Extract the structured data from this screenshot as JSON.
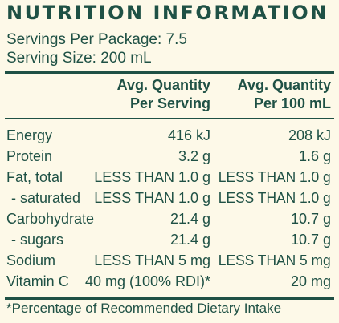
{
  "title": "NUTRITION INFORMATION",
  "servings_per_package": "Servings Per Package: 7.5",
  "serving_size": "Serving Size: 200 mL",
  "columns": {
    "per_serving_line1": "Avg. Quantity",
    "per_serving_line2": "Per Serving",
    "per_100_line1": "Avg. Quantity",
    "per_100_line2": "Per 100 mL"
  },
  "rows": [
    {
      "name": "Energy",
      "per_serving": "416 kJ",
      "per_100": "208 kJ"
    },
    {
      "name": "Protein",
      "per_serving": "3.2 g",
      "per_100": "1.6 g"
    },
    {
      "name": "Fat, total",
      "per_serving": "LESS THAN 1.0 g",
      "per_100": "LESS THAN 1.0 g"
    },
    {
      "name": "- saturated",
      "per_serving": "LESS THAN 1.0 g",
      "per_100": "LESS THAN 1.0 g"
    },
    {
      "name": "Carbohydrate",
      "per_serving": "21.4 g",
      "per_100": "10.7 g"
    },
    {
      "name": "- sugars",
      "per_serving": "21.4 g",
      "per_100": "10.7 g"
    },
    {
      "name": "Sodium",
      "per_serving": "LESS THAN 5 mg",
      "per_100": "LESS THAN 5 mg"
    },
    {
      "name": "Vitamin C",
      "per_serving": "40 mg (100% RDI)*",
      "per_100": "20 mg"
    }
  ],
  "footnote": "*Percentage of Recommended Dietary Intake",
  "colors": {
    "text": "#1f5145",
    "background": "#fdf9e8"
  }
}
